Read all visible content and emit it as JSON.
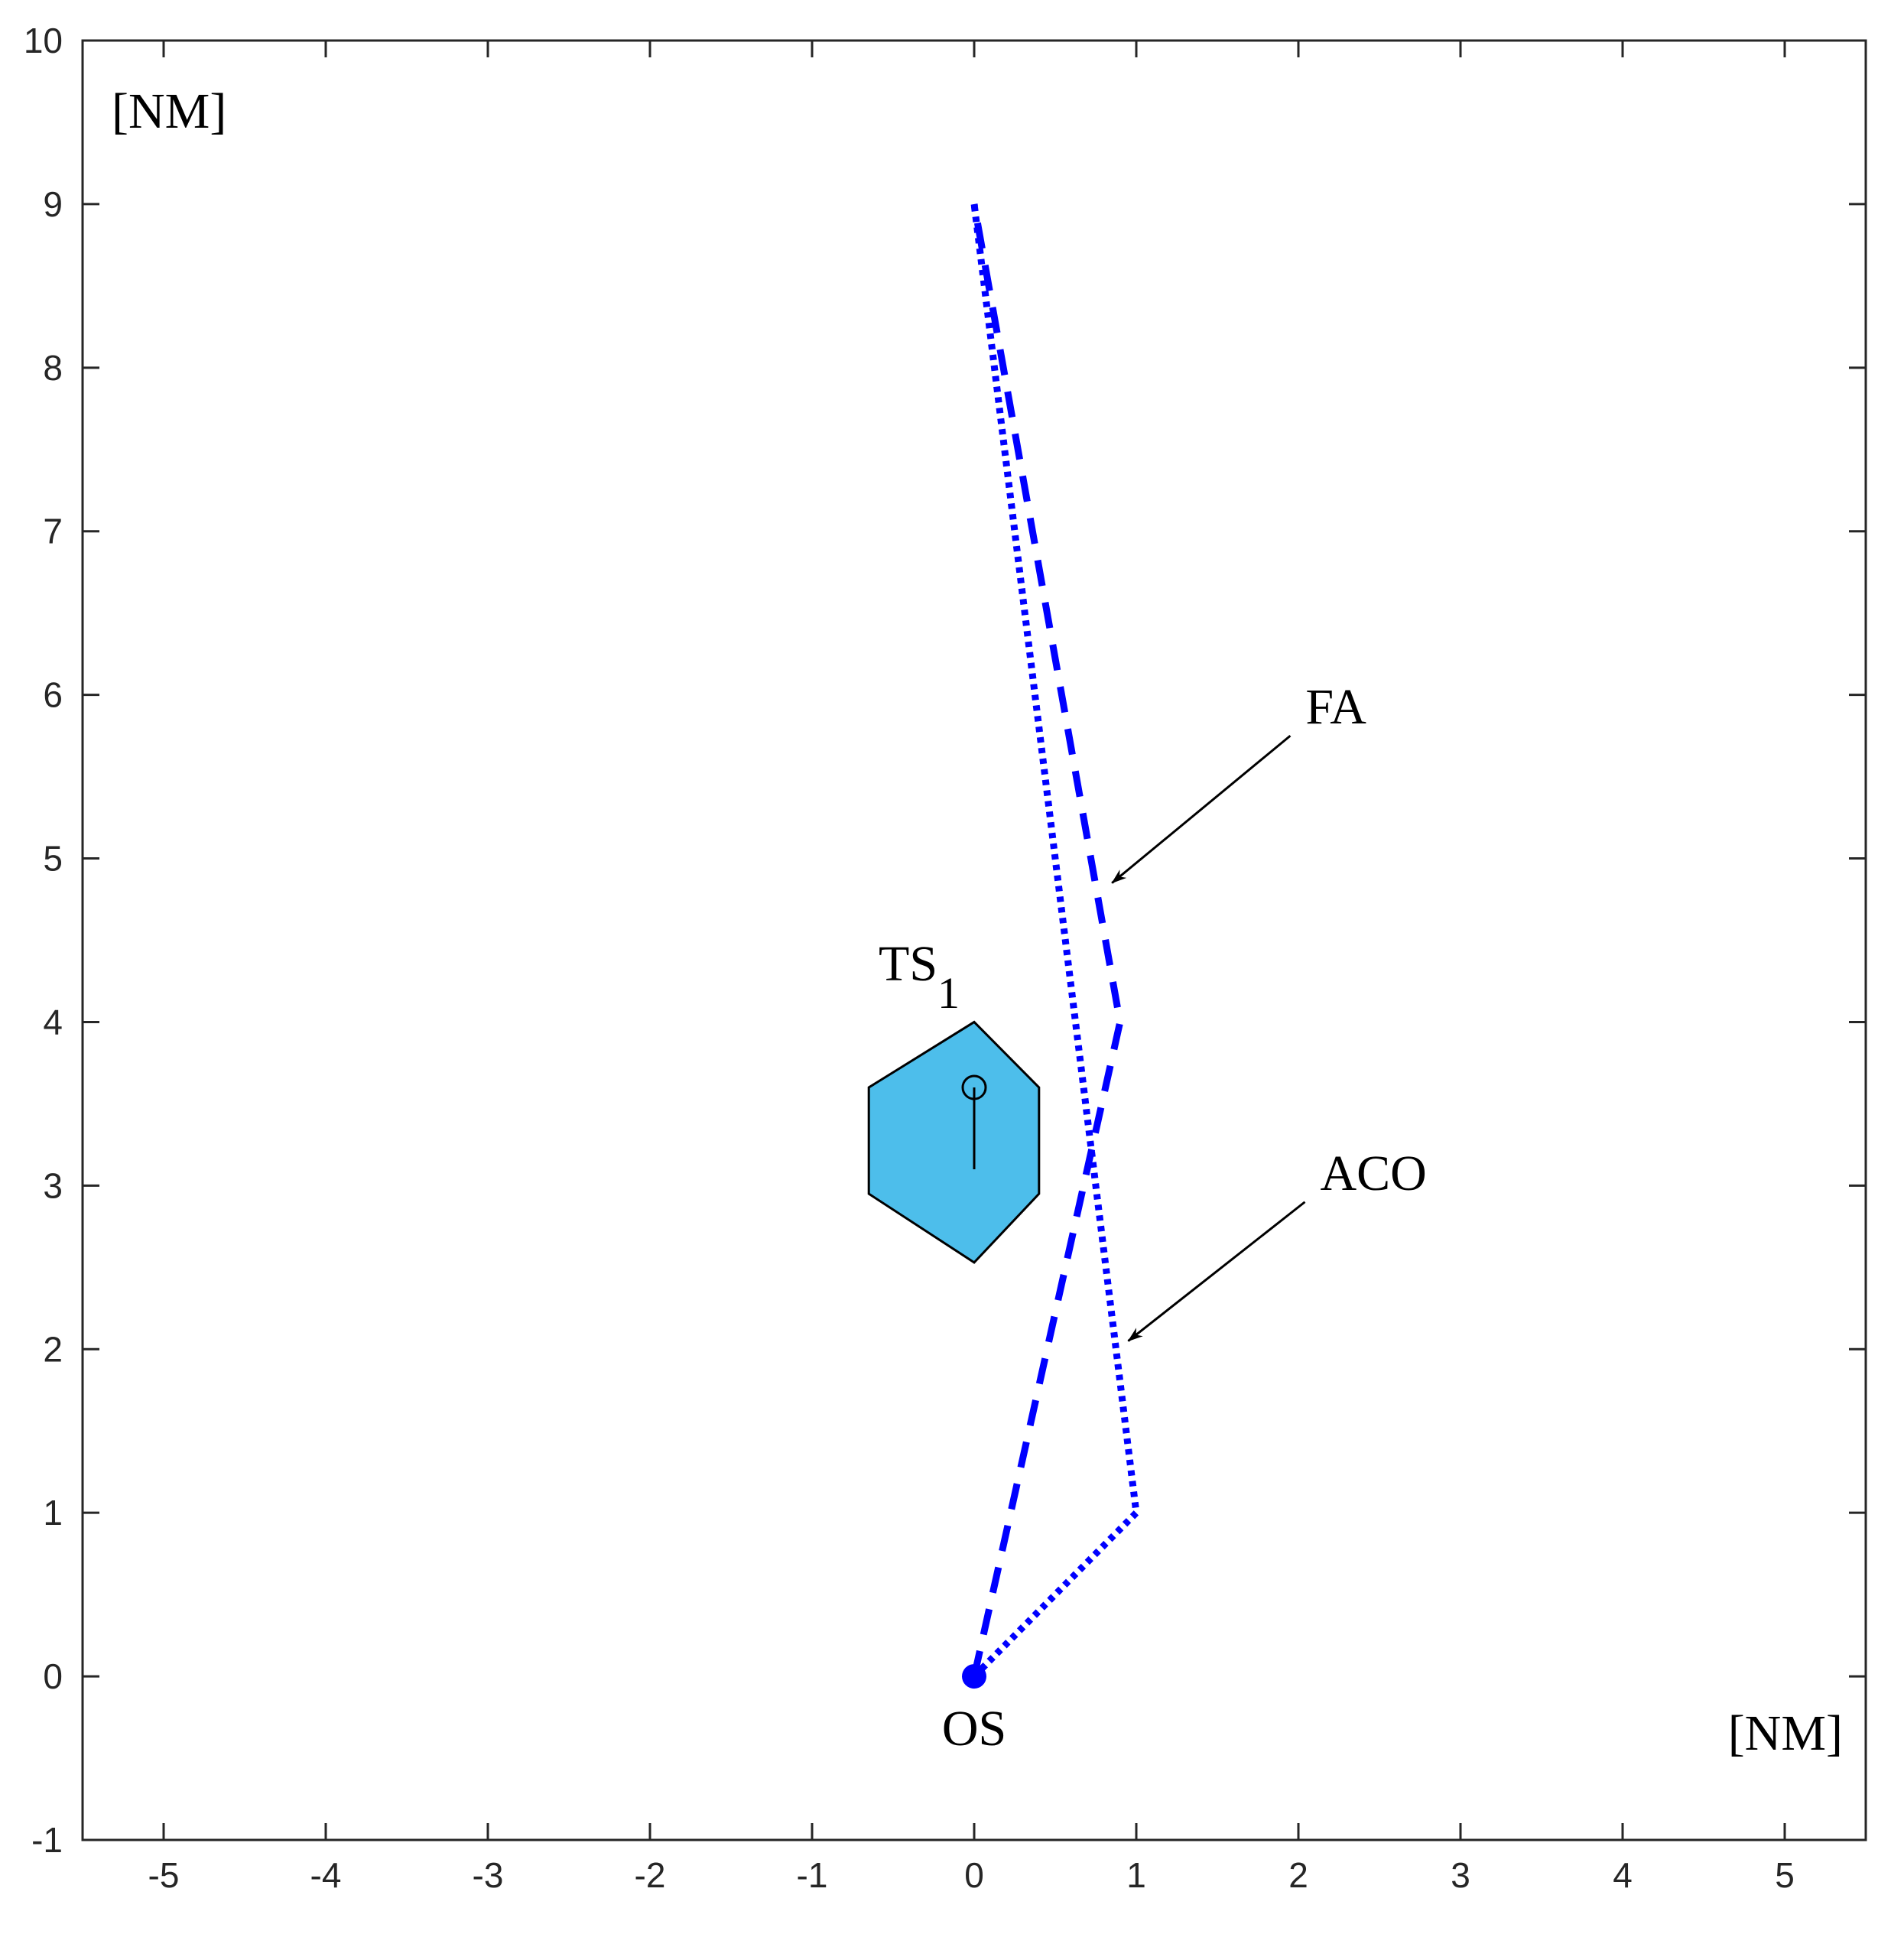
{
  "chart_data": {
    "type": "line",
    "title": "",
    "xlabel": "[NM]",
    "ylabel": "[NM]",
    "xlim": [
      -5.5,
      5.5
    ],
    "ylim": [
      -1,
      10
    ],
    "xticks": [
      "-5",
      "-4",
      "-3",
      "-2",
      "-1",
      "0",
      "1",
      "2",
      "3",
      "4",
      "5"
    ],
    "yticks": [
      "-1",
      "0",
      "1",
      "2",
      "3",
      "4",
      "5",
      "6",
      "7",
      "8",
      "9",
      "10"
    ],
    "grid": false,
    "series": [
      {
        "name": "FA",
        "style": "dashed",
        "color": "#0000ff",
        "points": [
          [
            0,
            0
          ],
          [
            0.9,
            4.0
          ],
          [
            0,
            9.0
          ]
        ]
      },
      {
        "name": "ACO",
        "style": "dotted",
        "color": "#0000ff",
        "points": [
          [
            0,
            0
          ],
          [
            1.0,
            1.0
          ],
          [
            0,
            9.0
          ]
        ]
      }
    ],
    "own_ship": {
      "label": "OS",
      "position": [
        0,
        0
      ],
      "color": "#0000ff"
    },
    "target_ship": {
      "label": "TS",
      "label_subscript": "1",
      "position": [
        0,
        3.6
      ],
      "heading_line_end": [
        0,
        3.1
      ],
      "domain_polygon": [
        [
          0,
          4.0
        ],
        [
          0.4,
          3.6
        ],
        [
          0.4,
          2.95
        ],
        [
          0,
          2.53
        ],
        [
          -0.65,
          2.95
        ],
        [
          -0.65,
          3.6
        ]
      ],
      "fill_color": "#4dbeeb"
    },
    "annotations": [
      {
        "text": "FA",
        "arrow_from": [
          1.95,
          5.75
        ],
        "arrow_to": [
          0.85,
          4.85
        ]
      },
      {
        "text": "ACO",
        "arrow_from": [
          2.04,
          2.9
        ],
        "arrow_to": [
          0.95,
          2.05
        ]
      }
    ]
  }
}
